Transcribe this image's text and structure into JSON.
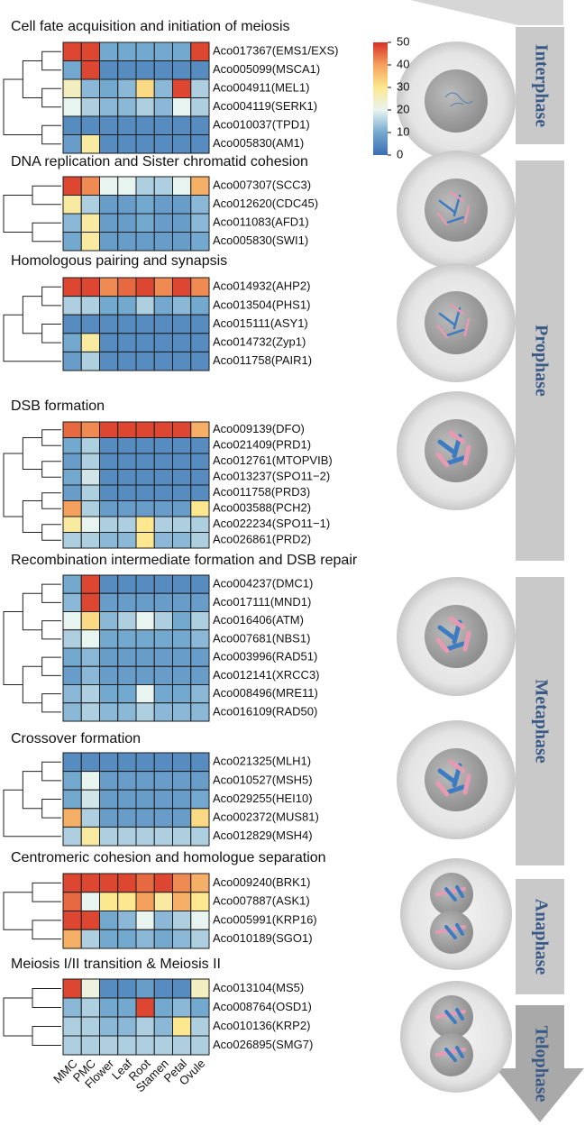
{
  "chart_data": {
    "type": "heatmap",
    "columns": [
      "MMC",
      "PMC",
      "Flower",
      "Leaf",
      "Root",
      "Stamen",
      "Petal",
      "Ovule"
    ],
    "colorbar": {
      "lim": [
        0,
        50
      ],
      "ticks": [
        0,
        10,
        20,
        30,
        40,
        50
      ],
      "colors": [
        "#3a6eb3",
        "#74a9cf",
        "#e8f4f0",
        "#fde88f",
        "#f4a15d",
        "#d73027"
      ]
    },
    "panels": [
      {
        "title": "Cell fate acquisition and initiation of meiosis",
        "rows": [
          "Aco017367(EMS1/EXS)",
          "Aco005099(MSCA1)",
          "Aco004911(MEL1)",
          "Aco004119(SERK1)",
          "Aco010037(TPD1)",
          "Aco005830(AM1)"
        ],
        "values": [
          [
            48,
            48,
            10,
            10,
            10,
            10,
            10,
            48
          ],
          [
            10,
            48,
            5,
            5,
            5,
            5,
            5,
            5
          ],
          [
            25,
            12,
            10,
            12,
            32,
            12,
            48,
            15
          ],
          [
            20,
            15,
            12,
            12,
            15,
            12,
            20,
            15
          ],
          [
            5,
            5,
            5,
            5,
            5,
            5,
            5,
            5
          ],
          [
            8,
            28,
            5,
            5,
            5,
            5,
            5,
            5
          ]
        ]
      },
      {
        "title": "DNA replication and Sister chromatid cohesion",
        "rows": [
          "Aco007307(SCC3)",
          "Aco012620(CDC45)",
          "Aco011083(AFD1)",
          "Aco005830(SWI1)"
        ],
        "values": [
          [
            48,
            42,
            20,
            20,
            15,
            15,
            20,
            38
          ],
          [
            28,
            15,
            8,
            8,
            10,
            8,
            8,
            12
          ],
          [
            12,
            28,
            8,
            8,
            10,
            8,
            8,
            12
          ],
          [
            10,
            28,
            8,
            8,
            8,
            8,
            8,
            10
          ]
        ]
      },
      {
        "title": "Homologous pairing and synapsis",
        "rows": [
          "Aco014932(AHP2)",
          "Aco013504(PHS1)",
          "Aco015111(ASY1)",
          "Aco014732(Zyp1)",
          "Aco011758(PAIR1)"
        ],
        "values": [
          [
            48,
            48,
            42,
            45,
            48,
            42,
            48,
            42
          ],
          [
            15,
            15,
            10,
            10,
            15,
            10,
            12,
            10
          ],
          [
            5,
            5,
            5,
            5,
            5,
            5,
            5,
            5
          ],
          [
            10,
            28,
            5,
            5,
            5,
            5,
            5,
            5
          ],
          [
            8,
            15,
            5,
            5,
            5,
            5,
            5,
            5
          ]
        ]
      },
      {
        "title": "DSB formation",
        "rows": [
          "Aco009139(DFO)",
          "Aco021409(PRD1)",
          "Aco012761(MTOPVIB)",
          "Aco013237(SPO11−2)",
          "Aco011758(PRD3)",
          "Aco003588(PCH2)",
          "Aco022234(SPO11−1)",
          "Aco026861(PRD2)"
        ],
        "values": [
          [
            45,
            42,
            48,
            48,
            48,
            48,
            48,
            38
          ],
          [
            10,
            15,
            5,
            5,
            5,
            5,
            5,
            5
          ],
          [
            8,
            15,
            5,
            5,
            5,
            5,
            5,
            5
          ],
          [
            10,
            18,
            5,
            5,
            5,
            5,
            5,
            5
          ],
          [
            8,
            15,
            5,
            5,
            5,
            5,
            5,
            5
          ],
          [
            40,
            15,
            8,
            8,
            8,
            8,
            8,
            30
          ],
          [
            28,
            20,
            15,
            15,
            30,
            15,
            15,
            15
          ],
          [
            15,
            15,
            12,
            12,
            30,
            12,
            12,
            15
          ]
        ]
      },
      {
        "title": "Recombination intermediate formation and DSB repair",
        "rows": [
          "Aco004237(DMC1)",
          "Aco017111(MND1)",
          "Aco016406(ATM)",
          "Aco007681(NBS1)",
          "Aco003996(RAD51)",
          "Aco012141(XRCC3)",
          "Aco008496(MRE11)",
          "Aco016109(RAD50)"
        ],
        "values": [
          [
            10,
            48,
            5,
            5,
            5,
            5,
            5,
            5
          ],
          [
            12,
            48,
            8,
            8,
            8,
            8,
            8,
            8
          ],
          [
            20,
            32,
            12,
            15,
            20,
            15,
            10,
            15
          ],
          [
            15,
            20,
            10,
            10,
            10,
            10,
            10,
            12
          ],
          [
            10,
            12,
            8,
            8,
            8,
            8,
            8,
            8
          ],
          [
            8,
            12,
            8,
            8,
            8,
            8,
            8,
            8
          ],
          [
            12,
            15,
            10,
            10,
            20,
            10,
            10,
            12
          ],
          [
            12,
            15,
            12,
            12,
            15,
            12,
            12,
            12
          ]
        ]
      },
      {
        "title": "Crossover formation",
        "rows": [
          "Aco021325(MLH1)",
          "Aco010527(MSH5)",
          "Aco029255(HEI10)",
          "Aco002372(MUS81)",
          "Aco012829(MSH4)"
        ],
        "values": [
          [
            5,
            5,
            5,
            5,
            5,
            5,
            5,
            5
          ],
          [
            10,
            20,
            8,
            8,
            8,
            8,
            8,
            8
          ],
          [
            10,
            18,
            8,
            8,
            8,
            8,
            8,
            10
          ],
          [
            38,
            15,
            8,
            8,
            8,
            8,
            8,
            32
          ],
          [
            15,
            28,
            15,
            15,
            15,
            15,
            15,
            15
          ]
        ]
      },
      {
        "title": "Centromeric cohesion and homologue separation",
        "rows": [
          "Aco009240(BRK1)",
          "Aco007887(ASK1)",
          "Aco005991(KRP16)",
          "Aco010189(SGO1)"
        ],
        "values": [
          [
            48,
            48,
            48,
            48,
            45,
            48,
            42,
            38
          ],
          [
            45,
            20,
            30,
            30,
            40,
            28,
            38,
            30
          ],
          [
            48,
            48,
            10,
            12,
            20,
            12,
            15,
            20
          ],
          [
            38,
            15,
            10,
            10,
            12,
            10,
            12,
            15
          ]
        ]
      },
      {
        "title": "Meiosis I/II transition & Meiosis II",
        "rows": [
          "Aco013104(MS5)",
          "Aco008764(OSD1)",
          "Aco010136(KRP2)",
          "Aco026895(SMG7)"
        ],
        "values": [
          [
            48,
            22,
            5,
            5,
            8,
            5,
            5,
            25
          ],
          [
            12,
            15,
            10,
            10,
            48,
            10,
            12,
            10
          ],
          [
            15,
            15,
            12,
            12,
            15,
            12,
            30,
            15
          ],
          [
            15,
            15,
            15,
            15,
            15,
            15,
            15,
            15
          ]
        ]
      }
    ],
    "phases": [
      "Interphase",
      "Prophase",
      "Metaphase",
      "Anaphase",
      "Telophase"
    ]
  }
}
